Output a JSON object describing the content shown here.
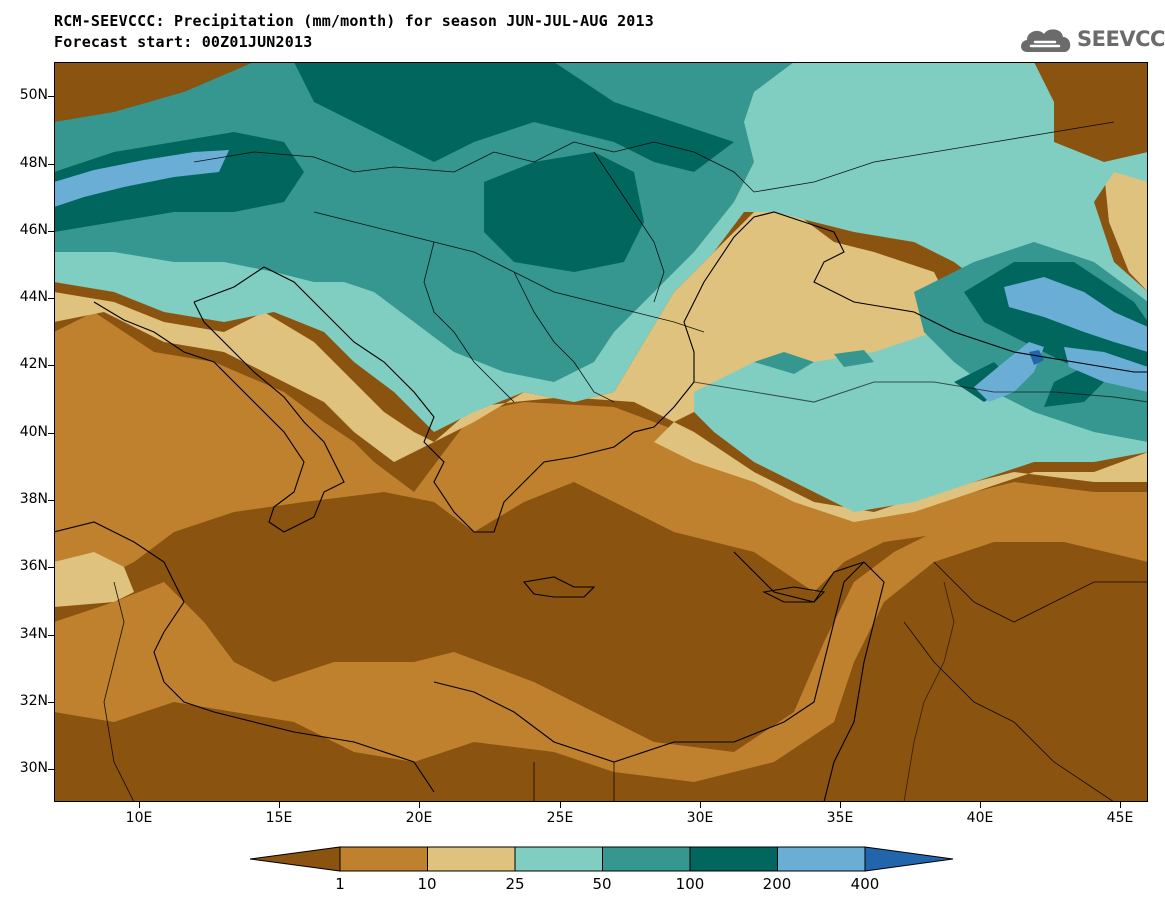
{
  "title": {
    "line1": "RCM-SEEVCCC: Precipitation (mm/month) for season JUN-JUL-AUG 2013",
    "line2": "Forecast start: 00Z01JUN2013"
  },
  "logo": {
    "text": "SEEVCCC",
    "icon": "cloud-icon"
  },
  "axes": {
    "lat_labels": [
      "50N",
      "48N",
      "46N",
      "44N",
      "42N",
      "40N",
      "38N",
      "36N",
      "34N",
      "32N",
      "30N"
    ],
    "lon_labels": [
      "10E",
      "15E",
      "20E",
      "25E",
      "30E",
      "35E",
      "40E",
      "45E"
    ],
    "lon_range": [
      7,
      46
    ],
    "lat_range": [
      29,
      51
    ]
  },
  "legend": {
    "labels": [
      "1",
      "10",
      "25",
      "50",
      "100",
      "200",
      "400"
    ],
    "colors": [
      "#8b5310",
      "#bf812d",
      "#dfc27d",
      "#80cdc1",
      "#35978f",
      "#01665e",
      "#6aaed6",
      "#2166ac"
    ]
  }
}
